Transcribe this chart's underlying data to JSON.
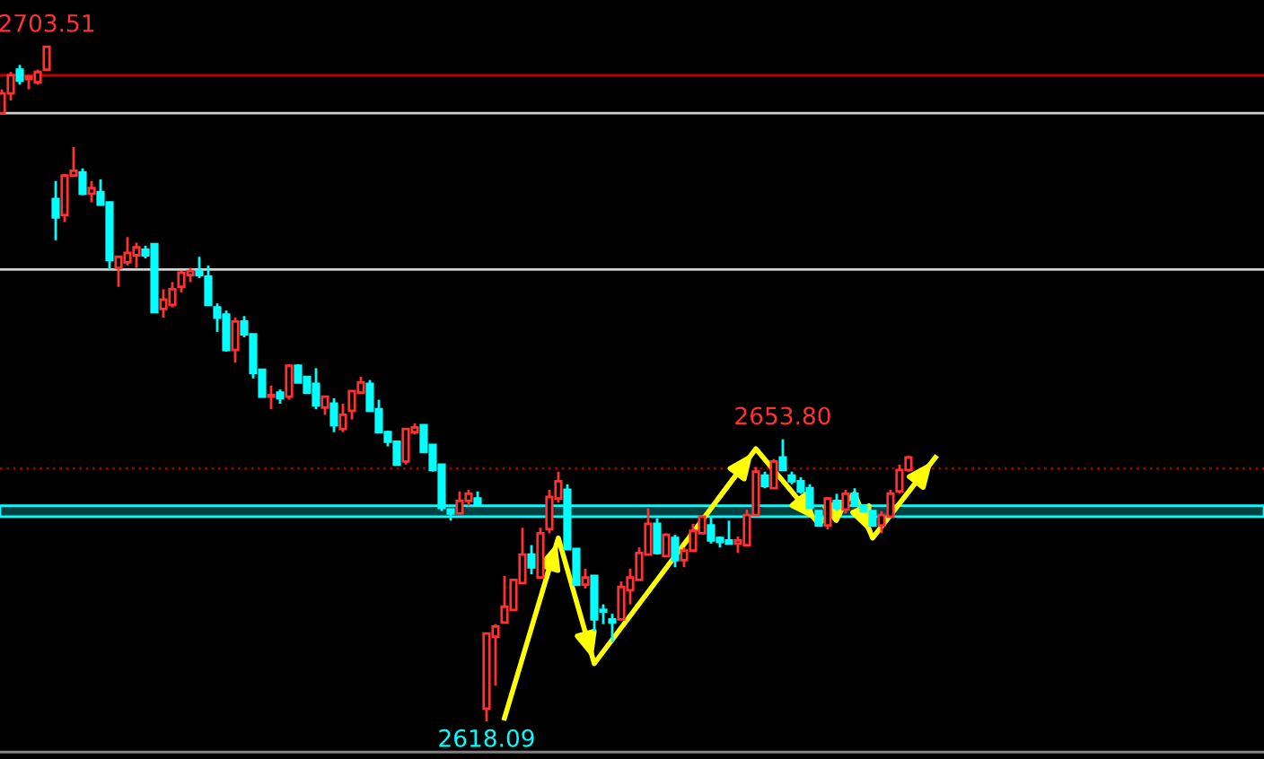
{
  "chart_data": {
    "type": "candlestick",
    "categories": [
      null,
      null,
      null,
      null,
      null,
      null,
      null,
      null,
      null,
      null,
      null,
      null,
      null,
      null,
      null,
      null,
      null,
      null,
      null,
      null,
      null,
      null,
      null,
      null,
      null,
      null,
      null,
      null,
      null,
      null,
      null,
      null,
      null,
      null,
      null,
      null,
      null,
      null,
      null,
      null,
      null,
      null,
      null,
      null,
      null,
      null,
      null,
      null,
      null,
      null,
      null,
      null,
      null,
      null,
      null,
      null,
      null,
      null,
      null,
      null,
      null,
      null,
      null,
      null,
      null,
      null,
      null,
      null,
      null,
      null,
      null,
      null,
      null,
      null,
      null,
      null,
      null,
      null,
      null,
      null,
      null,
      null,
      null,
      null,
      null,
      null,
      null,
      null,
      null,
      null,
      null,
      null,
      null,
      null,
      null,
      null,
      null,
      null,
      null,
      null,
      null,
      null,
      null,
      null,
      null
    ],
    "series": [
      {
        "type": "candlestick",
        "ohlc": [
          [
            2695.1,
            2698.1,
            2695.1,
            2697.6
          ],
          [
            2697.6,
            2700.3,
            2696.7,
            2699.9
          ],
          [
            2700.6,
            2701.2,
            2698.7,
            2699.2
          ],
          [
            2699.4,
            2699.9,
            2698.1,
            2699.7
          ],
          [
            2699.0,
            2700.6,
            2698.7,
            2700.3
          ],
          [
            2700.6,
            2703.51,
            2700.6,
            2703.5
          ],
          [
            2684.2,
            2686.5,
            2679.0,
            2681.9
          ],
          [
            2682.2,
            2687.4,
            2681.3,
            2687.2
          ],
          [
            2687.2,
            2690.8,
            2687.2,
            2687.8
          ],
          [
            2687.6,
            2688.1,
            2684.7,
            2684.9
          ],
          [
            2684.9,
            2686.5,
            2683.8,
            2685.6
          ],
          [
            2685.1,
            2686.7,
            2683.5,
            2683.5
          ],
          [
            2683.8,
            2683.8,
            2675.3,
            2676.5
          ],
          [
            2675.5,
            2676.9,
            2673.1,
            2676.9
          ],
          [
            2676.2,
            2679.4,
            2675.8,
            2677.4
          ],
          [
            2677.1,
            2678.7,
            2675.5,
            2678.1
          ],
          [
            2677.8,
            2678.3,
            2676.7,
            2677.1
          ],
          [
            2678.5,
            2678.5,
            2669.9,
            2669.9
          ],
          [
            2670.3,
            2672.8,
            2669.2,
            2671.5
          ],
          [
            2670.8,
            2673.7,
            2670.5,
            2672.8
          ],
          [
            2673.1,
            2675.1,
            2672.4,
            2674.9
          ],
          [
            2674.6,
            2675.5,
            2673.7,
            2675.1
          ],
          [
            2675.1,
            2676.9,
            2674.2,
            2674.6
          ],
          [
            2674.4,
            2675.8,
            2670.8,
            2670.8
          ],
          [
            2670.5,
            2671.0,
            2667.4,
            2669.2
          ],
          [
            2669.6,
            2670.1,
            2664.9,
            2665.1
          ],
          [
            2665.1,
            2669.2,
            2663.5,
            2668.7
          ],
          [
            2668.7,
            2669.4,
            2666.7,
            2667.1
          ],
          [
            2667.1,
            2667.1,
            2661.5,
            2662.2
          ],
          [
            2662.6,
            2662.6,
            2659.2,
            2659.2
          ],
          [
            2659.2,
            2660.6,
            2657.6,
            2659.4
          ],
          [
            2659.7,
            2660.1,
            2658.3,
            2659.0
          ],
          [
            2659.2,
            2663.3,
            2658.8,
            2663.1
          ],
          [
            2663.1,
            2663.3,
            2661.0,
            2661.0
          ],
          [
            2661.7,
            2661.7,
            2659.7,
            2659.7
          ],
          [
            2660.8,
            2662.8,
            2657.6,
            2658.1
          ],
          [
            2657.8,
            2659.2,
            2656.9,
            2659.2
          ],
          [
            2658.3,
            2659.0,
            2654.7,
            2655.6
          ],
          [
            2655.1,
            2658.3,
            2654.7,
            2656.9
          ],
          [
            2657.4,
            2659.9,
            2656.3,
            2659.9
          ],
          [
            2659.7,
            2661.7,
            2659.7,
            2661.0
          ],
          [
            2660.8,
            2661.3,
            2657.4,
            2657.4
          ],
          [
            2657.6,
            2658.8,
            2654.7,
            2654.7
          ],
          [
            2654.7,
            2654.9,
            2652.9,
            2653.5
          ],
          [
            2653.5,
            2653.5,
            2650.6,
            2650.6
          ],
          [
            2651.0,
            2655.1,
            2650.6,
            2655.1
          ],
          [
            2654.7,
            2655.8,
            2654.4,
            2655.3
          ],
          [
            2655.6,
            2655.6,
            2652.2,
            2652.2
          ],
          [
            2653.1,
            2653.1,
            2649.7,
            2649.9
          ],
          [
            2650.6,
            2650.6,
            2644.7,
            2645.1
          ],
          [
            2644.9,
            2644.9,
            2643.5,
            2644.4
          ],
          [
            2644.4,
            2647.2,
            2644.4,
            2646.0
          ],
          [
            2646.0,
            2647.4,
            2645.4,
            2646.9
          ],
          [
            2646.3,
            2647.2,
            2645.6,
            2645.6
          ],
          [
            2619.7,
            2629.2,
            2618.09,
            2629.2
          ],
          [
            2628.8,
            2630.4,
            2622.6,
            2630.1
          ],
          [
            2630.6,
            2636.5,
            2630.6,
            2632.6
          ],
          [
            2632.2,
            2636.0,
            2632.2,
            2636.0
          ],
          [
            2635.6,
            2642.6,
            2635.6,
            2639.2
          ],
          [
            2639.2,
            2640.4,
            2636.7,
            2637.6
          ],
          [
            2636.3,
            2642.6,
            2636.3,
            2641.9
          ],
          [
            2642.4,
            2647.4,
            2641.9,
            2646.5
          ],
          [
            2646.3,
            2649.7,
            2645.8,
            2648.5
          ],
          [
            2647.4,
            2648.1,
            2639.9,
            2639.9
          ],
          [
            2639.9,
            2639.9,
            2635.4,
            2635.4
          ],
          [
            2635.4,
            2637.4,
            2634.9,
            2636.3
          ],
          [
            2636.5,
            2636.5,
            2629.5,
            2631.0
          ],
          [
            2632.2,
            2632.9,
            2630.4,
            2632.0
          ],
          [
            2631.0,
            2631.7,
            2628.1,
            2630.6
          ],
          [
            2631.0,
            2635.8,
            2631.0,
            2635.1
          ],
          [
            2634.7,
            2637.4,
            2632.9,
            2636.3
          ],
          [
            2636.0,
            2640.1,
            2636.0,
            2639.4
          ],
          [
            2639.2,
            2645.1,
            2639.2,
            2643.1
          ],
          [
            2643.1,
            2643.8,
            2639.2,
            2639.4
          ],
          [
            2639.0,
            2641.9,
            2639.0,
            2641.7
          ],
          [
            2641.3,
            2641.7,
            2637.6,
            2638.5
          ],
          [
            2638.5,
            2640.1,
            2637.6,
            2639.7
          ],
          [
            2639.7,
            2643.1,
            2639.7,
            2642.2
          ],
          [
            2641.9,
            2644.0,
            2641.9,
            2644.0
          ],
          [
            2642.9,
            2644.0,
            2640.6,
            2641.0
          ],
          [
            2641.3,
            2641.5,
            2640.1,
            2640.8
          ],
          [
            2641.0,
            2643.5,
            2640.6,
            2640.6
          ],
          [
            2640.6,
            2641.5,
            2639.4,
            2641.0
          ],
          [
            2640.4,
            2644.9,
            2640.4,
            2644.2
          ],
          [
            2644.2,
            2650.3,
            2644.2,
            2649.7
          ],
          [
            2649.2,
            2649.7,
            2647.6,
            2647.9
          ],
          [
            2647.6,
            2651.3,
            2647.6,
            2651.0
          ],
          [
            2651.5,
            2653.8,
            2649.9,
            2649.9
          ],
          [
            2649.2,
            2649.7,
            2648.1,
            2648.5
          ],
          [
            2648.5,
            2649.0,
            2646.9,
            2647.2
          ],
          [
            2647.6,
            2648.1,
            2645.1,
            2645.1
          ],
          [
            2644.7,
            2644.7,
            2642.9,
            2642.9
          ],
          [
            2642.9,
            2646.5,
            2642.4,
            2646.3
          ],
          [
            2646.0,
            2646.9,
            2644.7,
            2645.1
          ],
          [
            2644.9,
            2647.4,
            2644.4,
            2646.9
          ],
          [
            2646.9,
            2647.6,
            2645.4,
            2645.4
          ],
          [
            2645.4,
            2645.4,
            2644.7,
            2644.7
          ],
          [
            2644.7,
            2644.7,
            2642.9,
            2642.9
          ],
          [
            2642.9,
            2644.7,
            2641.9,
            2644.2
          ],
          [
            2644.0,
            2647.4,
            2644.0,
            2646.9
          ],
          [
            2647.2,
            2650.6,
            2646.9,
            2649.9
          ],
          [
            2649.9,
            2651.7,
            2649.7,
            2651.5
          ],
          null,
          null,
          null
        ]
      },
      {
        "type": "line",
        "color": "#ffff00",
        "values": [
          null,
          null,
          null,
          null,
          null,
          null,
          null,
          null,
          null,
          null,
          null,
          null,
          null,
          null,
          null,
          null,
          null,
          null,
          null,
          null,
          null,
          null,
          null,
          null,
          null,
          null,
          null,
          null,
          null,
          null,
          null,
          null,
          null,
          null,
          null,
          null,
          null,
          null,
          null,
          null,
          null,
          null,
          null,
          null,
          null,
          null,
          null,
          null,
          null,
          null,
          null,
          null,
          null,
          null,
          null,
          null,
          2618.5,
          null,
          null,
          null,
          null,
          null,
          2641.3,
          null,
          null,
          null,
          2625.4,
          null,
          null,
          null,
          null,
          null,
          null,
          null,
          null,
          null,
          null,
          null,
          null,
          null,
          null,
          null,
          null,
          null,
          2652.6,
          null,
          null,
          null,
          null,
          null,
          null,
          2643.1,
          null,
          null,
          null,
          2646.9,
          null,
          2641.3,
          null,
          null,
          null,
          null,
          null,
          null,
          2651.5
        ]
      }
    ],
    "annotations": [
      {
        "text": "2703.51",
        "y": 2703.51
      },
      {
        "text": "2653.80",
        "y": 2653.8
      },
      {
        "text": "2618.09",
        "y": 2618.09
      }
    ],
    "ref_lines": [
      {
        "axis": "y",
        "value": 2699.9,
        "color": "#c00000"
      },
      {
        "axis": "y",
        "value": 2695.1,
        "color": "#d0d0d0"
      },
      {
        "axis": "y",
        "value": 2675.3,
        "color": "#d0d0d0"
      },
      {
        "axis": "y",
        "value": 2650.1,
        "color": "#a00000",
        "line_style": "dotted"
      },
      {
        "axis": "y",
        "value": 2614.2,
        "color": "#808080"
      }
    ],
    "bands": [
      {
        "axis": "y",
        "from": 2644.0,
        "to": 2645.4,
        "color": "#00ffff"
      }
    ],
    "tick_labels": false,
    "grid": false,
    "legend": false
  }
}
